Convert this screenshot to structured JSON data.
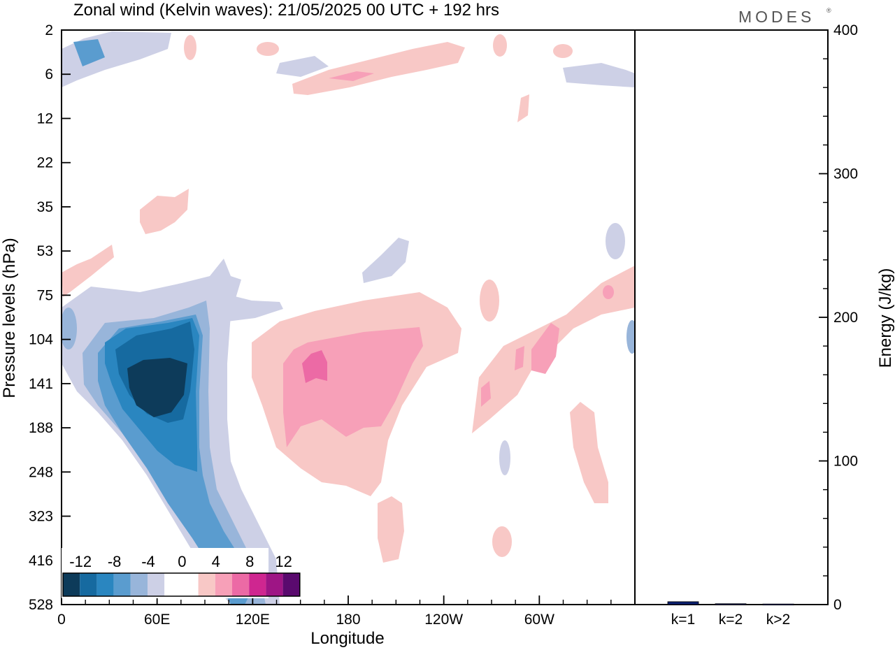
{
  "title": "Zonal wind (Kelvin waves):  21/05/2025  00 UTC  + 192 hrs",
  "logo": "MODES",
  "logo_mark": "®",
  "colors": {
    "neg": [
      "#0d3b5a",
      "#166aa0",
      "#2a86c0",
      "#5a9ccf",
      "#98b5da",
      "#cdd0e6"
    ],
    "pos": [
      "#f8c8c6",
      "#f7a0b8",
      "#ec6aa5",
      "#cf2690",
      "#9e1585",
      "#5a0a6e"
    ],
    "energy_bar": "#0a1f6e"
  },
  "chart_data": [
    {
      "type": "heatmap",
      "title": "Zonal wind (Kelvin waves):  21/05/2025  00 UTC  + 192 hrs",
      "xlabel": "Longitude",
      "ylabel": "Pressure levels (hPa)",
      "x_ticks": [
        "0",
        "60E",
        "120E",
        "180",
        "120W",
        "60W"
      ],
      "x_tick_values": [
        0,
        60,
        120,
        180,
        240,
        300
      ],
      "xlim": [
        0,
        360
      ],
      "y_ticks": [
        "2",
        "6",
        "12",
        "22",
        "35",
        "53",
        "75",
        "104",
        "141",
        "188",
        "248",
        "323",
        "416",
        "528"
      ],
      "y_scale": "log",
      "ylim": [
        528,
        2
      ],
      "colorbar_labels": [
        "-12",
        "-8",
        "-4",
        "0",
        "4",
        "8",
        "12"
      ],
      "colorbar_levels": [
        -14,
        -12,
        -10,
        -8,
        -6,
        -4,
        -2,
        2,
        4,
        6,
        8,
        10,
        12,
        14
      ],
      "grid": false,
      "features": [
        {
          "sign": "negative",
          "min_value": -12,
          "lon": 60,
          "pressure": 141
        },
        {
          "sign": "positive",
          "max_value": 8,
          "lon": 155,
          "pressure": 130
        },
        {
          "sign": "positive",
          "max_value": 6,
          "lon": 300,
          "pressure": 110
        },
        {
          "sign": "positive",
          "max_value": 6,
          "lon": 180,
          "pressure": 6
        }
      ]
    },
    {
      "type": "bar",
      "categories": [
        "k=1",
        "k=2",
        "k>2"
      ],
      "values": [
        2,
        0.6,
        0.4
      ],
      "ylabel": "Energy (J/kg)",
      "ylim": [
        0,
        400
      ],
      "y_ticks": [
        "0",
        "100",
        "200",
        "300",
        "400"
      ]
    }
  ]
}
